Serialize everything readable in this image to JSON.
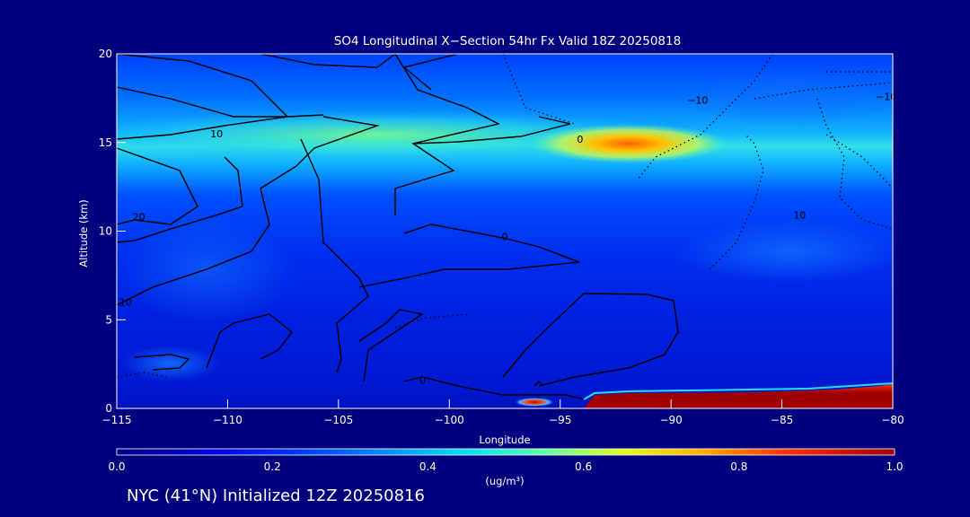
{
  "chart_data": {
    "type": "heatmap",
    "title": "SO4 Longitudinal X−Section 54hr  Fx Valid 18Z 20250818",
    "xlabel": "Longitude",
    "ylabel": "Altitude (km)",
    "xlim": [
      -115,
      -80
    ],
    "ylim": [
      0,
      20
    ],
    "x_ticks": [
      -115,
      -110,
      -105,
      -100,
      -95,
      -90,
      -85,
      -80
    ],
    "x_tick_labels": [
      "−115",
      "−110",
      "−105",
      "−100",
      "−95",
      "−90",
      "−85",
      "−80"
    ],
    "y_ticks": [
      0,
      5,
      10,
      15,
      20
    ],
    "y_tick_labels": [
      "0",
      "5",
      "10",
      "15",
      "20"
    ],
    "colorbar": {
      "label": "(ug/m³)",
      "min": 0.0,
      "max": 1.0,
      "ticks": [
        0.0,
        0.2,
        0.4,
        0.6,
        0.8,
        1.0
      ],
      "tick_labels": [
        "0.0",
        "0.2",
        "0.4",
        "0.6",
        "0.8",
        "1.0"
      ]
    },
    "contour_labels": [
      {
        "text": "10",
        "lon": -110.5,
        "alt": 15.5
      },
      {
        "text": "0",
        "lon": -94.1,
        "alt": 15.2
      },
      {
        "text": "−10",
        "lon": -88.8,
        "alt": 17.4
      },
      {
        "text": "−10",
        "lon": -80.3,
        "alt": 17.6
      },
      {
        "text": "20",
        "lon": -114.0,
        "alt": 10.8
      },
      {
        "text": "0",
        "lon": -97.5,
        "alt": 9.7
      },
      {
        "text": "10",
        "lon": -114.6,
        "alt": 6.0
      },
      {
        "text": "10",
        "lon": -84.2,
        "alt": 10.9
      },
      {
        "text": "0",
        "lon": -101.2,
        "alt": 1.6
      }
    ]
  },
  "footer": "NYC (41°N) Initialized 12Z 20250816"
}
